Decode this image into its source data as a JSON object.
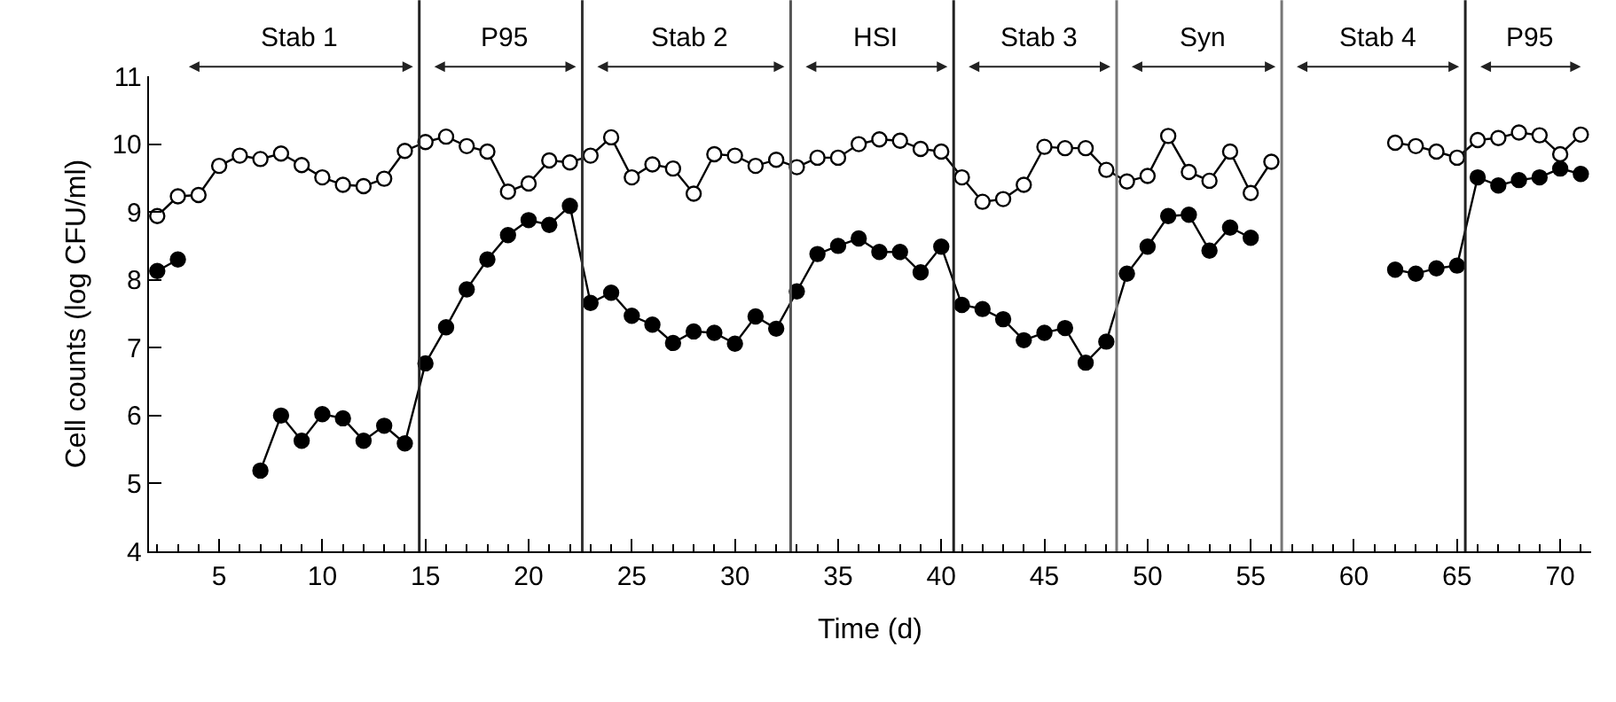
{
  "chart_data": {
    "type": "line",
    "xlabel": "Time (d)",
    "ylabel": "Cell counts (log CFU/ml)",
    "x": [
      2,
      3,
      4,
      5,
      6,
      7,
      8,
      9,
      10,
      11,
      12,
      13,
      14,
      15,
      16,
      17,
      18,
      19,
      20,
      21,
      22,
      23,
      24,
      25,
      26,
      27,
      28,
      29,
      30,
      31,
      32,
      33,
      34,
      35,
      36,
      37,
      38,
      39,
      40,
      41,
      42,
      43,
      44,
      45,
      46,
      47,
      48,
      49,
      50,
      51,
      52,
      53,
      54,
      55,
      56,
      57,
      58,
      59,
      60,
      61,
      62,
      63,
      64,
      65,
      66,
      67,
      68,
      69,
      70,
      71
    ],
    "series": [
      {
        "color": "#ffffff",
        "values": [
          8.94,
          9.23,
          9.25,
          9.68,
          9.83,
          9.78,
          9.86,
          9.69,
          9.51,
          9.4,
          9.38,
          9.49,
          9.9,
          10.03,
          10.11,
          9.97,
          9.89,
          9.3,
          9.42,
          9.76,
          9.73,
          9.83,
          10.1,
          9.51,
          9.7,
          9.64,
          9.27,
          9.85,
          9.83,
          9.68,
          9.77,
          9.66,
          9.8,
          9.8,
          10.0,
          10.07,
          10.05,
          9.93,
          9.89,
          9.51,
          9.15,
          9.19,
          9.4,
          9.96,
          9.94,
          9.94,
          9.62,
          9.45,
          9.53,
          10.12,
          9.59,
          9.46,
          9.89,
          9.28,
          9.74,
          null,
          null,
          null,
          null,
          null,
          10.02,
          9.97,
          9.89,
          9.8,
          10.06,
          10.09,
          10.17,
          10.13,
          9.85,
          10.14
        ]
      },
      {
        "color": "#000000",
        "values": [
          8.13,
          8.3,
          null,
          null,
          null,
          5.19,
          6.0,
          5.63,
          6.02,
          5.96,
          5.63,
          5.85,
          5.59,
          6.77,
          7.3,
          7.86,
          8.3,
          8.66,
          8.88,
          8.81,
          9.09,
          7.66,
          7.81,
          7.47,
          7.34,
          7.07,
          7.24,
          7.22,
          7.06,
          7.46,
          7.28,
          7.83,
          8.38,
          8.5,
          8.61,
          8.41,
          8.41,
          8.11,
          8.49,
          7.63,
          7.57,
          7.42,
          7.11,
          7.22,
          7.29,
          6.78,
          7.09,
          8.09,
          8.49,
          8.94,
          8.96,
          8.43,
          8.77,
          8.62,
          null,
          null,
          null,
          null,
          null,
          null,
          8.15,
          8.09,
          8.17,
          8.21,
          9.51,
          9.39,
          9.47,
          9.51,
          9.64,
          9.56
        ]
      }
    ],
    "marker": "circle",
    "line_style": "solid",
    "legend": false,
    "xlim": [
      1.6,
      71.5
    ],
    "xticks": [
      5,
      10,
      15,
      20,
      25,
      30,
      35,
      40,
      45,
      50,
      55,
      60,
      65,
      70
    ],
    "ylim": [
      4,
      11
    ],
    "yticks": [
      4,
      5,
      6,
      7,
      8,
      9,
      10,
      11
    ],
    "ref_lines": [
      {
        "axis": "x",
        "value": 14.7,
        "color": "#222222"
      },
      {
        "axis": "x",
        "value": 22.6,
        "color": "#333333"
      },
      {
        "axis": "x",
        "value": 32.7,
        "color": "#555555"
      },
      {
        "axis": "x",
        "value": 40.6,
        "color": "#222222"
      },
      {
        "axis": "x",
        "value": 48.5,
        "color": "#777777"
      },
      {
        "axis": "x",
        "value": 56.5,
        "color": "#777777"
      },
      {
        "axis": "x",
        "value": 65.4,
        "color": "#222222"
      }
    ],
    "annotations": [
      "Stab 1",
      "P95",
      "Stab 2",
      "HSI",
      "Stab 3",
      "Syn",
      "Stab 4",
      "P95"
    ]
  }
}
